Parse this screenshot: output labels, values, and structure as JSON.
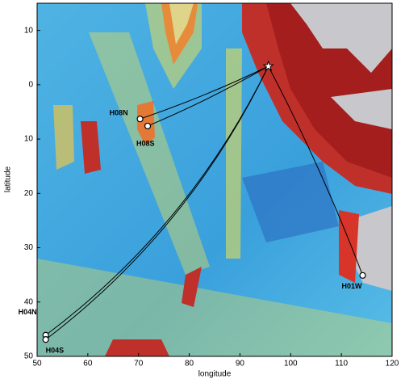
{
  "chart_data": {
    "type": "map",
    "xlabel": "longitude",
    "ylabel": "latitude",
    "xlim": [
      50,
      120
    ],
    "ylim": [
      -15,
      50
    ],
    "xticks": [
      50,
      60,
      70,
      80,
      90,
      100,
      110,
      120
    ],
    "yticks": [
      {
        "value": -10,
        "label": "10"
      },
      0,
      10,
      20,
      30,
      40,
      50
    ],
    "source": {
      "lon": 95.6,
      "lat": -3.4
    },
    "stations": [
      {
        "name": "H08N",
        "lon": 70.3,
        "lat": 6.3
      },
      {
        "name": "H08S",
        "lon": 71.8,
        "lat": 7.6
      },
      {
        "name": "H04N",
        "lon": 51.7,
        "lat": 46.1
      },
      {
        "name": "H04S",
        "lon": 51.7,
        "lat": 46.9
      },
      {
        "name": "H01W",
        "lon": 114.2,
        "lat": 35.1
      }
    ]
  }
}
